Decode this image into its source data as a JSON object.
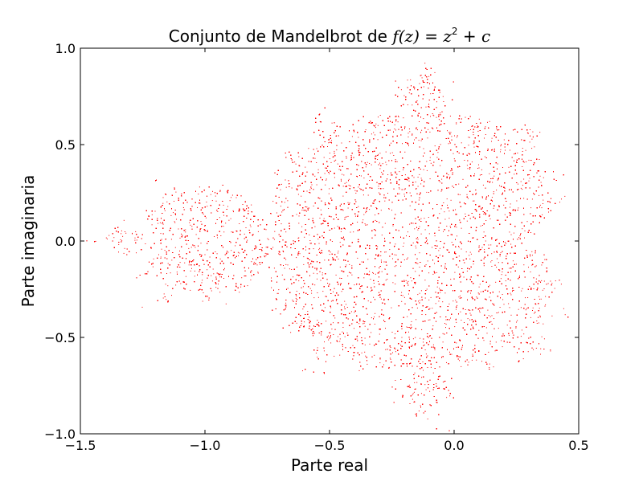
{
  "chart_data": {
    "type": "scatter",
    "title": {
      "text": "Conjunto de Mandelbrot de ",
      "formula_fz": "f(z)",
      "formula_eq": " = ",
      "formula_z": "z",
      "formula_exp": "2",
      "formula_plus": " + ",
      "formula_c": "c"
    },
    "xlabel": "Parte real",
    "ylabel": "Parte imaginaria",
    "xlim": [
      -1.5,
      0.5
    ],
    "ylim": [
      -1.0,
      1.0
    ],
    "xticks": [
      -1.5,
      -1.0,
      -0.5,
      0.0,
      0.5
    ],
    "xtick_labels": [
      "−1.5",
      "−1.0",
      "−0.5",
      "0.0",
      "0.5"
    ],
    "yticks": [
      -1.0,
      -0.5,
      0.0,
      0.5,
      1.0
    ],
    "ytick_labels": [
      "−1.0",
      "−0.5",
      "0.0",
      "0.5",
      "1.0"
    ],
    "grid": false,
    "series": [
      {
        "marker_color": "#ff0000",
        "description_of_points": "Mandelbrot set points c in complex plane, re in [-1.5,0.5], im in [-1,1], dense random sampling",
        "sample_count": 60000,
        "max_iterations": 25
      }
    ]
  }
}
